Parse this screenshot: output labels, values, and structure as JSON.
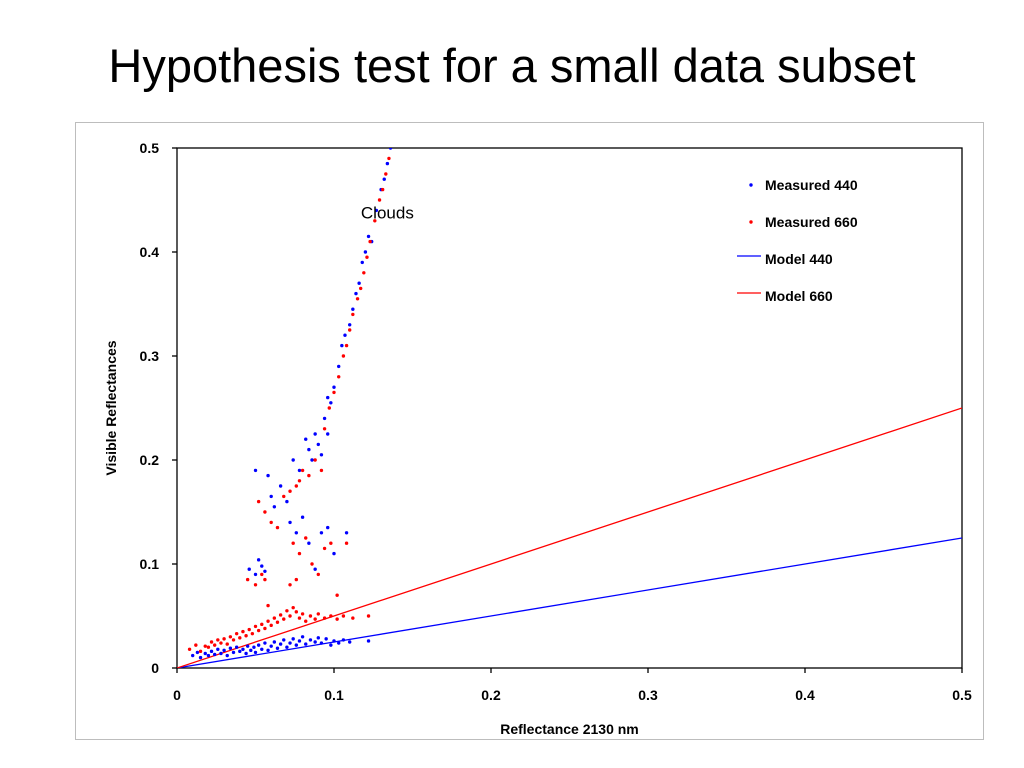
{
  "slide": {
    "title": "Hypothesis test for a small data subset"
  },
  "chart_data": {
    "type": "scatter",
    "xlabel": "Reflectance 2130 nm",
    "ylabel": "Visible Reflectances",
    "xlim": [
      0,
      0.5
    ],
    "ylim": [
      0,
      0.5
    ],
    "x_ticks": [
      "0",
      "0.1",
      "0.2",
      "0.3",
      "0.4",
      "0.5"
    ],
    "y_ticks": [
      "0",
      "0.1",
      "0.2",
      "0.3",
      "0.4",
      "0.5"
    ],
    "grid": false,
    "legend_position": "top-right",
    "annotations": [
      {
        "text": "Clouds",
        "x": 0.134,
        "y": 0.432
      }
    ],
    "series": [
      {
        "name": "Measured 440",
        "kind": "points",
        "color": "#0000ff",
        "points": [
          [
            0.01,
            0.012
          ],
          [
            0.013,
            0.015
          ],
          [
            0.015,
            0.01
          ],
          [
            0.018,
            0.014
          ],
          [
            0.02,
            0.012
          ],
          [
            0.022,
            0.016
          ],
          [
            0.024,
            0.013
          ],
          [
            0.026,
            0.018
          ],
          [
            0.028,
            0.014
          ],
          [
            0.03,
            0.017
          ],
          [
            0.032,
            0.012
          ],
          [
            0.034,
            0.019
          ],
          [
            0.036,
            0.015
          ],
          [
            0.038,
            0.02
          ],
          [
            0.04,
            0.016
          ],
          [
            0.042,
            0.018
          ],
          [
            0.044,
            0.014
          ],
          [
            0.045,
            0.021
          ],
          [
            0.047,
            0.017
          ],
          [
            0.049,
            0.02
          ],
          [
            0.05,
            0.015
          ],
          [
            0.052,
            0.022
          ],
          [
            0.054,
            0.018
          ],
          [
            0.056,
            0.024
          ],
          [
            0.058,
            0.017
          ],
          [
            0.06,
            0.021
          ],
          [
            0.062,
            0.025
          ],
          [
            0.064,
            0.019
          ],
          [
            0.066,
            0.023
          ],
          [
            0.068,
            0.027
          ],
          [
            0.07,
            0.02
          ],
          [
            0.072,
            0.024
          ],
          [
            0.074,
            0.028
          ],
          [
            0.076,
            0.022
          ],
          [
            0.078,
            0.026
          ],
          [
            0.08,
            0.03
          ],
          [
            0.082,
            0.023
          ],
          [
            0.085,
            0.027
          ],
          [
            0.088,
            0.025
          ],
          [
            0.09,
            0.029
          ],
          [
            0.092,
            0.024
          ],
          [
            0.095,
            0.028
          ],
          [
            0.098,
            0.022
          ],
          [
            0.1,
            0.026
          ],
          [
            0.103,
            0.024
          ],
          [
            0.106,
            0.027
          ],
          [
            0.11,
            0.025
          ],
          [
            0.122,
            0.026
          ],
          [
            0.046,
            0.095
          ],
          [
            0.05,
            0.09
          ],
          [
            0.052,
            0.104
          ],
          [
            0.054,
            0.098
          ],
          [
            0.056,
            0.093
          ],
          [
            0.05,
            0.19
          ],
          [
            0.058,
            0.185
          ],
          [
            0.06,
            0.165
          ],
          [
            0.062,
            0.155
          ],
          [
            0.066,
            0.175
          ],
          [
            0.07,
            0.16
          ],
          [
            0.074,
            0.2
          ],
          [
            0.078,
            0.19
          ],
          [
            0.082,
            0.22
          ],
          [
            0.084,
            0.21
          ],
          [
            0.086,
            0.2
          ],
          [
            0.088,
            0.225
          ],
          [
            0.09,
            0.215
          ],
          [
            0.092,
            0.205
          ],
          [
            0.096,
            0.225
          ],
          [
            0.072,
            0.14
          ],
          [
            0.076,
            0.13
          ],
          [
            0.08,
            0.145
          ],
          [
            0.084,
            0.12
          ],
          [
            0.088,
            0.095
          ],
          [
            0.092,
            0.13
          ],
          [
            0.096,
            0.135
          ],
          [
            0.1,
            0.11
          ],
          [
            0.108,
            0.13
          ],
          [
            0.094,
            0.24
          ],
          [
            0.096,
            0.26
          ],
          [
            0.098,
            0.255
          ],
          [
            0.1,
            0.27
          ],
          [
            0.103,
            0.29
          ],
          [
            0.105,
            0.31
          ],
          [
            0.107,
            0.32
          ],
          [
            0.11,
            0.33
          ],
          [
            0.112,
            0.345
          ],
          [
            0.114,
            0.36
          ],
          [
            0.116,
            0.37
          ],
          [
            0.118,
            0.39
          ],
          [
            0.12,
            0.4
          ],
          [
            0.122,
            0.415
          ],
          [
            0.124,
            0.41
          ],
          [
            0.127,
            0.44
          ],
          [
            0.13,
            0.46
          ],
          [
            0.132,
            0.47
          ],
          [
            0.134,
            0.485
          ],
          [
            0.136,
            0.5
          ]
        ]
      },
      {
        "name": "Measured 660",
        "kind": "points",
        "color": "#ff0000",
        "points": [
          [
            0.008,
            0.018
          ],
          [
            0.012,
            0.022
          ],
          [
            0.015,
            0.016
          ],
          [
            0.018,
            0.021
          ],
          [
            0.02,
            0.02
          ],
          [
            0.022,
            0.025
          ],
          [
            0.024,
            0.022
          ],
          [
            0.026,
            0.027
          ],
          [
            0.028,
            0.024
          ],
          [
            0.03,
            0.028
          ],
          [
            0.032,
            0.023
          ],
          [
            0.034,
            0.03
          ],
          [
            0.036,
            0.027
          ],
          [
            0.038,
            0.033
          ],
          [
            0.04,
            0.029
          ],
          [
            0.042,
            0.035
          ],
          [
            0.044,
            0.031
          ],
          [
            0.046,
            0.037
          ],
          [
            0.048,
            0.033
          ],
          [
            0.05,
            0.04
          ],
          [
            0.052,
            0.036
          ],
          [
            0.054,
            0.042
          ],
          [
            0.056,
            0.038
          ],
          [
            0.058,
            0.045
          ],
          [
            0.06,
            0.041
          ],
          [
            0.062,
            0.048
          ],
          [
            0.064,
            0.044
          ],
          [
            0.066,
            0.051
          ],
          [
            0.068,
            0.047
          ],
          [
            0.07,
            0.055
          ],
          [
            0.072,
            0.05
          ],
          [
            0.074,
            0.058
          ],
          [
            0.076,
            0.054
          ],
          [
            0.078,
            0.048
          ],
          [
            0.08,
            0.052
          ],
          [
            0.082,
            0.045
          ],
          [
            0.085,
            0.05
          ],
          [
            0.088,
            0.047
          ],
          [
            0.09,
            0.052
          ],
          [
            0.094,
            0.048
          ],
          [
            0.098,
            0.05
          ],
          [
            0.102,
            0.047
          ],
          [
            0.106,
            0.05
          ],
          [
            0.112,
            0.048
          ],
          [
            0.122,
            0.05
          ],
          [
            0.045,
            0.085
          ],
          [
            0.05,
            0.08
          ],
          [
            0.054,
            0.09
          ],
          [
            0.056,
            0.085
          ],
          [
            0.058,
            0.06
          ],
          [
            0.052,
            0.16
          ],
          [
            0.056,
            0.15
          ],
          [
            0.06,
            0.14
          ],
          [
            0.064,
            0.135
          ],
          [
            0.068,
            0.165
          ],
          [
            0.072,
            0.17
          ],
          [
            0.076,
            0.175
          ],
          [
            0.078,
            0.18
          ],
          [
            0.08,
            0.19
          ],
          [
            0.084,
            0.185
          ],
          [
            0.088,
            0.2
          ],
          [
            0.092,
            0.19
          ],
          [
            0.074,
            0.12
          ],
          [
            0.078,
            0.11
          ],
          [
            0.082,
            0.125
          ],
          [
            0.086,
            0.1
          ],
          [
            0.09,
            0.09
          ],
          [
            0.094,
            0.115
          ],
          [
            0.098,
            0.12
          ],
          [
            0.102,
            0.07
          ],
          [
            0.108,
            0.12
          ],
          [
            0.072,
            0.08
          ],
          [
            0.076,
            0.085
          ],
          [
            0.094,
            0.23
          ],
          [
            0.097,
            0.25
          ],
          [
            0.1,
            0.265
          ],
          [
            0.103,
            0.28
          ],
          [
            0.106,
            0.3
          ],
          [
            0.108,
            0.31
          ],
          [
            0.11,
            0.325
          ],
          [
            0.112,
            0.34
          ],
          [
            0.115,
            0.355
          ],
          [
            0.117,
            0.365
          ],
          [
            0.119,
            0.38
          ],
          [
            0.121,
            0.395
          ],
          [
            0.123,
            0.41
          ],
          [
            0.126,
            0.43
          ],
          [
            0.129,
            0.45
          ],
          [
            0.131,
            0.46
          ],
          [
            0.133,
            0.475
          ],
          [
            0.135,
            0.49
          ]
        ]
      },
      {
        "name": "Model 440",
        "kind": "line",
        "color": "#0000ff",
        "points": [
          [
            0,
            0
          ],
          [
            0.5,
            0.125
          ]
        ]
      },
      {
        "name": "Model 660",
        "kind": "line",
        "color": "#ff0000",
        "points": [
          [
            0,
            0
          ],
          [
            0.5,
            0.25
          ]
        ]
      }
    ]
  }
}
